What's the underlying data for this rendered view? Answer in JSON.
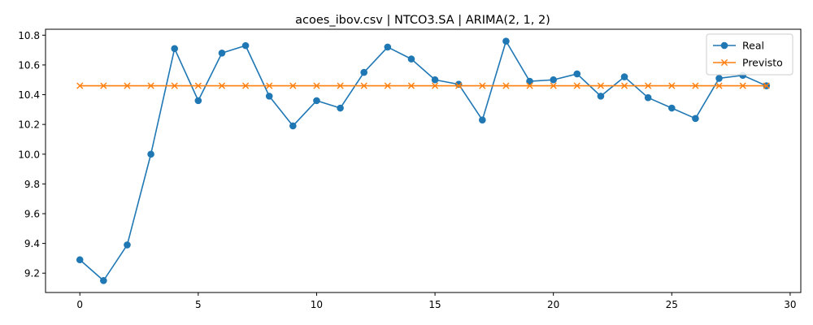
{
  "chart_data": {
    "type": "line",
    "title": "acoes_ibov.csv | NTCO3.SA | ARIMA(2, 1, 2)",
    "xlabel": "",
    "ylabel": "",
    "xlim": [
      -1.45,
      30.45
    ],
    "ylim": [
      9.07,
      10.84
    ],
    "xticks": [
      0,
      5,
      10,
      15,
      20,
      25,
      30
    ],
    "yticks": [
      9.2,
      9.4,
      9.6,
      9.8,
      10.0,
      10.2,
      10.4,
      10.6,
      10.8
    ],
    "xtick_labels": [
      "0",
      "5",
      "10",
      "15",
      "20",
      "25",
      "30"
    ],
    "ytick_labels": [
      "9.2",
      "9.4",
      "9.6",
      "9.8",
      "10.0",
      "10.2",
      "10.4",
      "10.6",
      "10.8"
    ],
    "grid": false,
    "legend_position": "top-right",
    "x": [
      0,
      1,
      2,
      3,
      4,
      5,
      6,
      7,
      8,
      9,
      10,
      11,
      12,
      13,
      14,
      15,
      16,
      17,
      18,
      19,
      20,
      21,
      22,
      23,
      24,
      25,
      26,
      27,
      28,
      29
    ],
    "series": [
      {
        "name": "Real",
        "color": "#1f77b4",
        "marker": "circle",
        "values": [
          9.29,
          9.15,
          9.39,
          10.0,
          10.71,
          10.36,
          10.68,
          10.73,
          10.39,
          10.19,
          10.36,
          10.31,
          10.55,
          10.72,
          10.64,
          10.5,
          10.47,
          10.23,
          10.76,
          10.49,
          10.5,
          10.54,
          10.39,
          10.52,
          10.38,
          10.31,
          10.24,
          10.51,
          10.53,
          10.46
        ]
      },
      {
        "name": "Previsto",
        "color": "#ff7f0e",
        "marker": "x",
        "values": [
          10.46,
          10.46,
          10.46,
          10.46,
          10.46,
          10.46,
          10.46,
          10.46,
          10.46,
          10.46,
          10.46,
          10.46,
          10.46,
          10.46,
          10.46,
          10.46,
          10.46,
          10.46,
          10.46,
          10.46,
          10.46,
          10.46,
          10.46,
          10.46,
          10.46,
          10.46,
          10.46,
          10.46,
          10.46,
          10.46
        ]
      }
    ]
  }
}
